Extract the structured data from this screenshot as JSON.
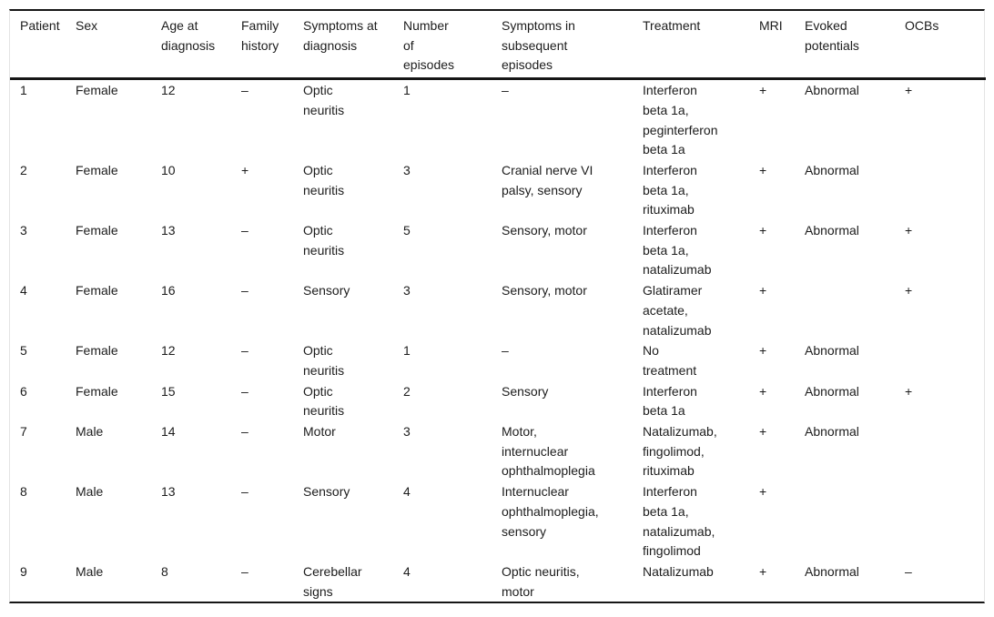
{
  "colors": {
    "rule": "#161616",
    "side_border": "#e4e4e4",
    "text": "#1c1c1c",
    "background": "#ffffff"
  },
  "table": {
    "columns": [
      {
        "key": "patient",
        "label": "Patient"
      },
      {
        "key": "sex",
        "label": "Sex"
      },
      {
        "key": "age-at-diagnosis",
        "label": "Age at diagnosis"
      },
      {
        "key": "family-history",
        "label": "Family history"
      },
      {
        "key": "symptoms-at-diagnosis",
        "label": "Symptoms at diagnosis"
      },
      {
        "key": "number-of-episodes",
        "label": "Number of episodes"
      },
      {
        "key": "symptoms-subsequent",
        "label": "Symptoms in subsequent episodes"
      },
      {
        "key": "treatment",
        "label": "Treatment"
      },
      {
        "key": "mri",
        "label": "MRI"
      },
      {
        "key": "evoked-potentials",
        "label": "Evoked potentials"
      },
      {
        "key": "ocbs",
        "label": "OCBs"
      }
    ],
    "rows": [
      [
        "1",
        "Female",
        "12",
        "–",
        "Optic neuritis",
        "1",
        "–",
        "Interferon beta 1a, peginterferon beta 1a",
        "+",
        "Abnormal",
        "+"
      ],
      [
        "2",
        "Female",
        "10",
        "+",
        "Optic neuritis",
        "3",
        "Cranial nerve VI palsy, sensory",
        "Interferon beta 1a, rituximab",
        "+",
        "Abnormal",
        ""
      ],
      [
        "3",
        "Female",
        "13",
        "–",
        "Optic neuritis",
        "5",
        "Sensory, motor",
        "Interferon beta 1a, natalizumab",
        "+",
        "Abnormal",
        "+"
      ],
      [
        "4",
        "Female",
        "16",
        "–",
        "Sensory",
        "3",
        "Sensory, motor",
        "Glatiramer acetate, natalizumab",
        "+",
        "",
        "+"
      ],
      [
        "5",
        "Female",
        "12",
        "–",
        "Optic neuritis",
        "1",
        "–",
        "No treatment",
        "+",
        "Abnormal",
        ""
      ],
      [
        "6",
        "Female",
        "15",
        "–",
        "Optic neuritis",
        "2",
        "Sensory",
        "Interferon beta 1a",
        "+",
        "Abnormal",
        "+"
      ],
      [
        "7",
        "Male",
        "14",
        "–",
        "Motor",
        "3",
        "Motor, internuclear ophthalmoplegia",
        "Natalizumab, fingolimod, rituximab",
        "+",
        "Abnormal",
        ""
      ],
      [
        "8",
        "Male",
        "13",
        "–",
        "Sensory",
        "4",
        "Internuclear ophthalmoplegia, sensory",
        "Interferon beta 1a, natalizumab, fingolimod",
        "+",
        "",
        ""
      ],
      [
        "9",
        "Male",
        "8",
        "–",
        "Cerebellar signs",
        "4",
        "Optic neuritis, motor",
        "Natalizumab",
        "+",
        "Abnormal",
        "–"
      ]
    ]
  }
}
